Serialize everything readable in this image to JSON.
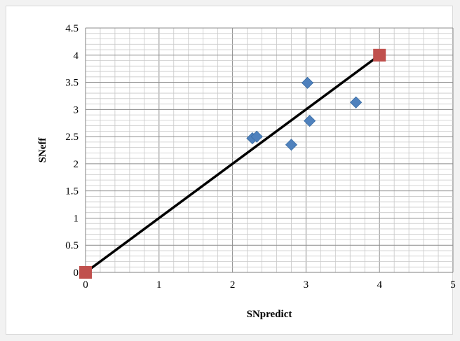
{
  "chart_data": {
    "type": "scatter",
    "title": "",
    "xlabel": "SNpredict",
    "ylabel": "SNeff",
    "xlim": [
      0,
      5
    ],
    "ylim": [
      0,
      4.5
    ],
    "x_ticks": [
      "0",
      "1",
      "2",
      "3",
      "4",
      "5"
    ],
    "y_ticks": [
      "0",
      "0.5",
      "1",
      "1.5",
      "2",
      "2.5",
      "3",
      "3.5",
      "4",
      "4.5"
    ],
    "grid": true,
    "legend": "none",
    "series": [
      {
        "marker": "diamond",
        "color": "#4f81bd",
        "points": [
          {
            "x": 2.27,
            "y": 2.47
          },
          {
            "x": 2.33,
            "y": 2.5
          },
          {
            "x": 2.8,
            "y": 2.35
          },
          {
            "x": 3.02,
            "y": 3.49
          },
          {
            "x": 3.05,
            "y": 2.79
          },
          {
            "x": 3.68,
            "y": 3.13
          }
        ]
      },
      {
        "marker": "square",
        "color": "#c0504d",
        "points": [
          {
            "x": 0,
            "y": 0
          },
          {
            "x": 4,
            "y": 4
          }
        ]
      }
    ],
    "line": {
      "color": "#000000",
      "from": {
        "x": 0,
        "y": 0
      },
      "to": {
        "x": 4,
        "y": 4
      }
    }
  }
}
